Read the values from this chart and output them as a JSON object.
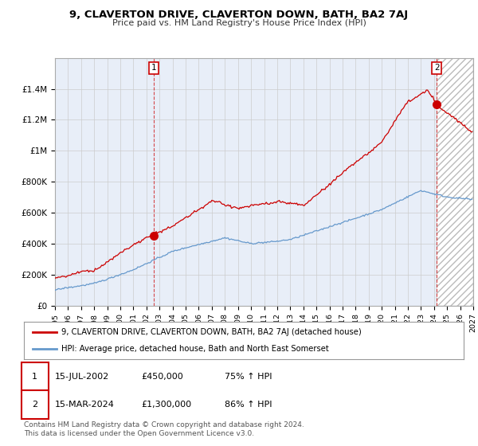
{
  "title": "9, CLAVERTON DRIVE, CLAVERTON DOWN, BATH, BA2 7AJ",
  "subtitle": "Price paid vs. HM Land Registry's House Price Index (HPI)",
  "legend_label_red": "9, CLAVERTON DRIVE, CLAVERTON DOWN, BATH, BA2 7AJ (detached house)",
  "legend_label_blue": "HPI: Average price, detached house, Bath and North East Somerset",
  "transaction1_date": "15-JUL-2002",
  "transaction1_price": "£450,000",
  "transaction1_hpi": "75% ↑ HPI",
  "transaction2_date": "15-MAR-2024",
  "transaction2_price": "£1,300,000",
  "transaction2_hpi": "86% ↑ HPI",
  "footer": "Contains HM Land Registry data © Crown copyright and database right 2024.\nThis data is licensed under the Open Government Licence v3.0.",
  "red_color": "#cc0000",
  "blue_color": "#6699cc",
  "background_color": "#ffffff",
  "grid_color": "#cccccc",
  "plot_bg": "#e8eef8"
}
